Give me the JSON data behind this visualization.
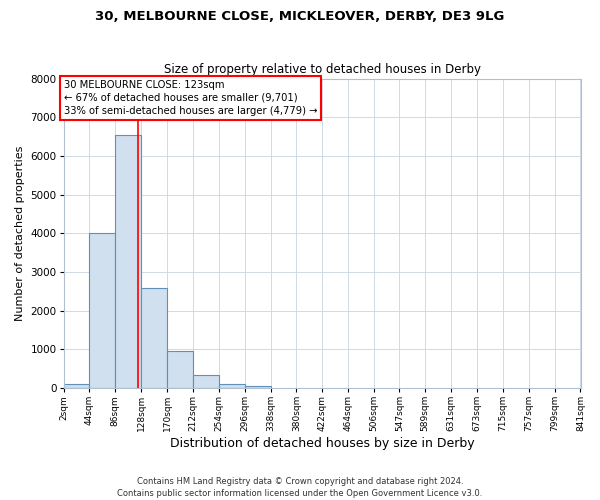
{
  "title1": "30, MELBOURNE CLOSE, MICKLEOVER, DERBY, DE3 9LG",
  "title2": "Size of property relative to detached houses in Derby",
  "xlabel": "Distribution of detached houses by size in Derby",
  "ylabel": "Number of detached properties",
  "footer1": "Contains HM Land Registry data © Crown copyright and database right 2024.",
  "footer2": "Contains public sector information licensed under the Open Government Licence v3.0.",
  "annotation_title": "30 MELBOURNE CLOSE: 123sqm",
  "annotation_line1": "← 67% of detached houses are smaller (9,701)",
  "annotation_line2": "33% of semi-detached houses are larger (4,779) →",
  "bar_color": "#d0e0ee",
  "bar_edge_color": "#6090b8",
  "red_line_x": 123,
  "bin_edges": [
    2,
    44,
    86,
    128,
    170,
    212,
    254,
    296,
    338,
    380,
    422,
    464,
    506,
    547,
    589,
    631,
    673,
    715,
    757,
    799,
    841
  ],
  "bar_heights": [
    100,
    4000,
    6550,
    2600,
    950,
    350,
    100,
    50,
    0,
    0,
    0,
    0,
    0,
    0,
    0,
    0,
    0,
    0,
    0,
    0
  ],
  "ylim": [
    0,
    8000
  ],
  "yticks": [
    0,
    1000,
    2000,
    3000,
    4000,
    5000,
    6000,
    7000,
    8000
  ],
  "background_color": "#ffffff",
  "grid_color": "#c8d4e0"
}
